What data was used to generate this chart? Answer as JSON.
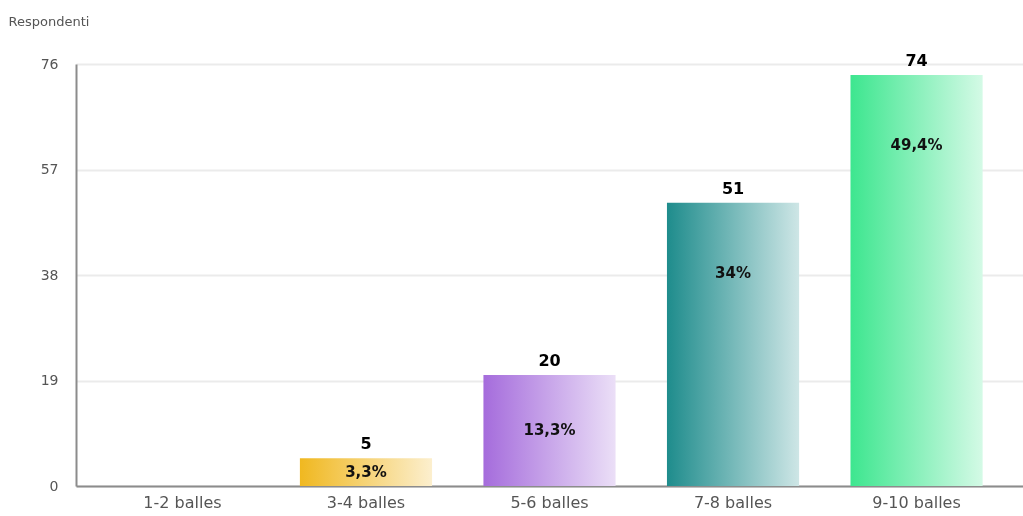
{
  "chart_data": {
    "type": "bar",
    "ylabel": "Respondenti",
    "categories": [
      "1-2 balles",
      "3-4 balles",
      "5-6 balles",
      "7-8 balles",
      "9-10 balles"
    ],
    "values": [
      0,
      5,
      20,
      51,
      74
    ],
    "value_labels": [
      null,
      "5",
      "20",
      "51",
      "74"
    ],
    "colors": [
      null,
      "#f0b820",
      "#a56cdc",
      "#1e8c8c",
      "#3de68f"
    ],
    "ylim": [
      0,
      76
    ],
    "yticks": [
      0,
      19,
      38,
      57,
      76
    ],
    "grid": "y",
    "annotations": [
      "3,3%",
      "13,3%",
      "34%",
      "49,4%"
    ]
  }
}
